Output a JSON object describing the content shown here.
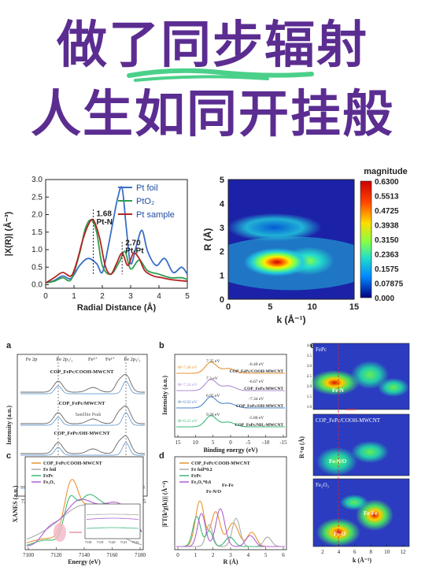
{
  "headline": {
    "line1": "做了同步辐射",
    "line2": "人生如同开挂般",
    "underline_color": "#4bd08a",
    "text_color": "#5b2d91"
  },
  "chart_data": [
    {
      "type": "line",
      "panel": "exafs-r-space",
      "xlabel": "Radial Distance (Å)",
      "ylabel": "|X(R)| (Å⁻³)",
      "xlim": [
        0,
        5
      ],
      "ylim": [
        -0.1,
        3.0
      ],
      "xticks": [
        "0",
        "1",
        "2",
        "3",
        "4",
        "5"
      ],
      "yticks": [
        "0.0",
        "0.5",
        "1.0",
        "1.5",
        "2.0",
        "2.5",
        "3.0"
      ],
      "legend_position": "top-right",
      "annotations": [
        {
          "text": "1.68",
          "x": 1.68,
          "y": 1.95
        },
        {
          "text": "Pt-N",
          "x": 1.68,
          "y": 1.72
        },
        {
          "text": "2.70",
          "x": 2.7,
          "y": 1.12
        },
        {
          "text": "Pt-Pt",
          "x": 2.7,
          "y": 0.9
        }
      ],
      "series": [
        {
          "name": "Pt foil",
          "color": "#3b6fc4",
          "x": [
            0.0,
            0.3,
            0.6,
            0.9,
            1.2,
            1.5,
            1.8,
            2.0,
            2.2,
            2.4,
            2.55,
            2.7,
            2.85,
            3.0,
            3.2,
            3.4,
            3.6,
            3.9,
            4.2,
            4.5,
            4.8,
            5.0
          ],
          "y": [
            0.05,
            0.12,
            0.25,
            0.18,
            0.55,
            0.75,
            0.6,
            0.35,
            1.05,
            1.9,
            2.5,
            2.75,
            1.6,
            0.6,
            1.1,
            1.55,
            0.95,
            0.55,
            0.75,
            0.35,
            0.5,
            0.3
          ]
        },
        {
          "name": "PtO₂",
          "color": "#2e9e4f",
          "x": [
            0.0,
            0.3,
            0.6,
            0.9,
            1.2,
            1.4,
            1.6,
            1.8,
            2.0,
            2.3,
            2.6,
            2.8,
            3.0,
            3.3,
            3.6,
            4.0,
            4.4,
            4.8,
            5.0
          ],
          "y": [
            0.05,
            0.1,
            0.2,
            0.15,
            0.9,
            1.6,
            1.85,
            1.5,
            0.55,
            0.3,
            0.65,
            0.95,
            0.45,
            0.7,
            0.4,
            0.3,
            0.2,
            0.2,
            0.15
          ]
        },
        {
          "name": "Pt sample",
          "color": "#b32424",
          "x": [
            0.0,
            0.3,
            0.6,
            0.9,
            1.1,
            1.3,
            1.5,
            1.68,
            1.9,
            2.1,
            2.3,
            2.5,
            2.7,
            2.9,
            3.1,
            3.3,
            3.5,
            3.8,
            4.1,
            4.4,
            4.7,
            5.0
          ],
          "y": [
            0.05,
            0.2,
            0.35,
            0.25,
            0.65,
            1.25,
            1.7,
            1.85,
            1.35,
            0.55,
            0.3,
            0.6,
            0.9,
            0.55,
            0.9,
            0.75,
            0.4,
            0.25,
            0.2,
            0.15,
            0.12,
            0.1
          ]
        }
      ]
    },
    {
      "type": "heatmap",
      "panel": "wavelet-transform",
      "xlabel": "k (Å⁻¹)",
      "ylabel": "R (Å)",
      "xlim": [
        0,
        15
      ],
      "ylim": [
        0,
        5
      ],
      "xticks": [
        "0",
        "5",
        "10",
        "15"
      ],
      "yticks": [
        "0",
        "1",
        "2",
        "3",
        "4",
        "5"
      ],
      "colorbar_title": "magnitude",
      "colorbar_ticks": [
        "0.6300",
        "0.5513",
        "0.4725",
        "0.3938",
        "0.3150",
        "0.2363",
        "0.1575",
        "0.07875",
        "0.000"
      ],
      "colorbar_colors": [
        "#cc0000",
        "#ff3300",
        "#ff9900",
        "#ffee00",
        "#88ff44",
        "#22ddcc",
        "#0099ff",
        "#0033cc",
        "#000080"
      ],
      "blobs": [
        {
          "k": 5.8,
          "r": 1.55,
          "value": 0.63
        },
        {
          "k": 9.5,
          "r": 1.6,
          "value": 0.35
        },
        {
          "k": 5.5,
          "r": 3.0,
          "value": 0.22
        },
        {
          "k": 9.0,
          "r": 3.0,
          "value": 0.18
        }
      ]
    },
    {
      "type": "line",
      "panel": "a",
      "label": "a",
      "xlabel": "Binding Energy (eV)",
      "ylabel": "Intensity (a.u.)",
      "xlim": [
        730,
        705
      ],
      "xticks": [
        "730",
        "725",
        "720",
        "715",
        "710",
        "705"
      ],
      "top_labels": [
        "Fe 2p",
        "Fe 2p₁/₂",
        "Fe³⁺",
        "Fe²⁺",
        "Fe 2p₃/₂"
      ],
      "annotations": [
        "Satellite Peak"
      ],
      "series": [
        {
          "name": "COP_FePc/COOH-MWCNT"
        },
        {
          "name": "COP_FePc/MWCNT"
        },
        {
          "name": "COP_FePc/OH-MWCNT"
        },
        {
          "name": "COP_FePc/NH₂-MWCNT"
        }
      ]
    },
    {
      "type": "line",
      "panel": "b",
      "label": "b",
      "xlabel": "Binding energy (eV)",
      "ylabel": "Intensity (a.u.)",
      "xlim": [
        15,
        -15
      ],
      "xticks": [
        "15",
        "10",
        "5",
        "0",
        "-5",
        "-10",
        "-15"
      ],
      "series": [
        {
          "name": "COP_FePc/COOH-MWCNT",
          "color": "#e69533",
          "labels": [
            "Φ=7.46 eV",
            "7.35 eV",
            "-6.40 eV"
          ]
        },
        {
          "name": "COP_FePc/MWCNT",
          "color": "#b08cd8",
          "labels": [
            "Φ=7.24 eV",
            "7.3 eV",
            "-6.67 eV"
          ]
        },
        {
          "name": "COP_FePc/OH-MWCNT",
          "color": "#4a86c8",
          "labels": [
            "Φ=6.92 eV",
            "6.95 eV",
            "-7.34 eV"
          ]
        },
        {
          "name": "COP_FePc/NH₂-MWCNT",
          "color": "#3db87a",
          "labels": [
            "Φ=6.21 eV",
            "9.20 eV",
            "-5.80 eV"
          ]
        }
      ]
    },
    {
      "type": "line",
      "panel": "c",
      "label": "c",
      "xlabel": "Energy (eV)",
      "ylabel": "XANES (a.u.)",
      "xlim": [
        7100,
        7180
      ],
      "xticks": [
        "7100",
        "7120",
        "7140",
        "7160",
        "7180"
      ],
      "inset_xticks": [
        "7118",
        "7119",
        "7120",
        "7121",
        "7122"
      ],
      "series": [
        {
          "name": "COP_FePc/COOH-MWCNT",
          "color": "#e69533"
        },
        {
          "name": "Fe foil",
          "color": "#aaaaaa"
        },
        {
          "name": "FePc",
          "color": "#3db87a"
        },
        {
          "name": "Fe₂O₃",
          "color": "#b060d0"
        }
      ]
    },
    {
      "type": "line",
      "panel": "d",
      "label": "d",
      "xlabel": "R (Å)",
      "ylabel": "|FT(k³χ(k))| (Å⁻⁴)",
      "xlim": [
        0,
        6
      ],
      "xticks": [
        "0",
        "1",
        "2",
        "3",
        "4",
        "5",
        "6"
      ],
      "annotations": [
        "Fe-N/O",
        "Fe-Fe"
      ],
      "series": [
        {
          "name": "COP_FePc/COOH-MWCNT",
          "color": "#e69533"
        },
        {
          "name": "Fe foil*0.2",
          "color": "#aaaaaa"
        },
        {
          "name": "FePc",
          "color": "#3db87a"
        },
        {
          "name": "Fe₂O₃*0.6",
          "color": "#b060d0"
        }
      ]
    },
    {
      "type": "heatmap",
      "panel": "e",
      "label": "e",
      "xlabel": "k (Å⁻¹)",
      "ylabel": "R+α (Å)",
      "xticks": [
        "2",
        "4",
        "6",
        "8",
        "10",
        "12"
      ],
      "yticks": [
        "1.0",
        "1.5",
        "2.0",
        "2.5",
        "3.0",
        "3.5",
        "4.0"
      ],
      "subpanels": [
        {
          "title": "FePc",
          "annotations": [
            "Fe-N"
          ]
        },
        {
          "title": "COP_FePc/COOH-MWCNT",
          "annotations": [
            "Fe-N/O"
          ]
        },
        {
          "title": "Fe₂O₃",
          "annotations": [
            "Fe-O",
            "Fe-Fe"
          ]
        }
      ]
    }
  ]
}
